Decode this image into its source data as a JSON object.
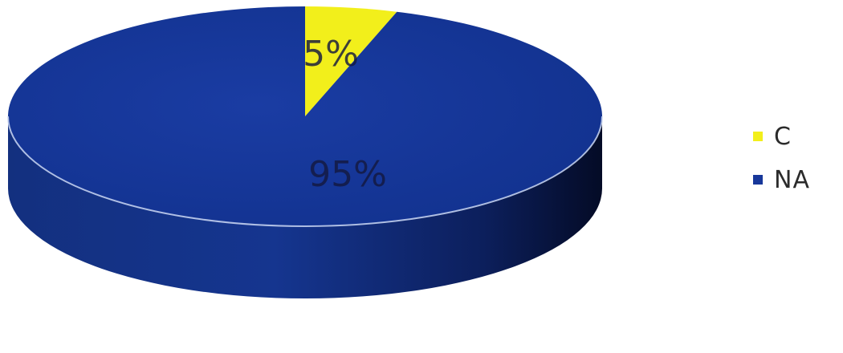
{
  "chart_data": {
    "type": "pie",
    "style": "3d",
    "title": "",
    "data_labels_shown": true,
    "legend_position": "right",
    "slices": [
      {
        "name": "C",
        "value": 5,
        "label": "5%",
        "color": "#f2ef1b"
      },
      {
        "name": "NA",
        "value": 95,
        "label": "95%",
        "color": "#17379a"
      }
    ]
  }
}
